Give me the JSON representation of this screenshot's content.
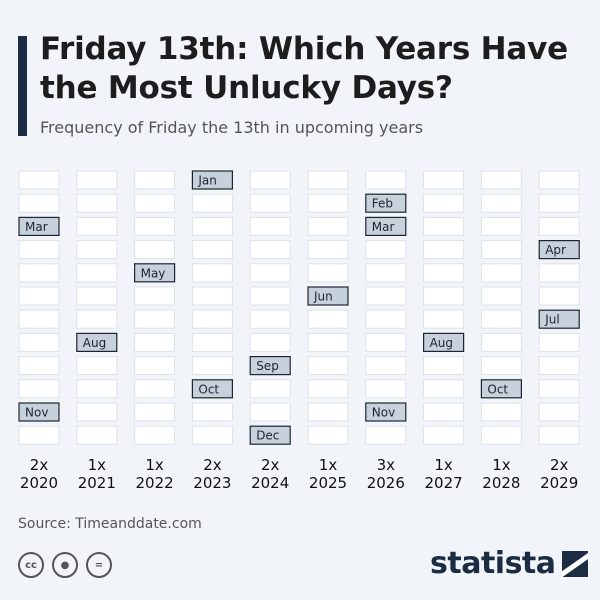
{
  "header": {
    "title": "Friday 13th: Which Years Have the Most Unlucky Days?",
    "subtitle": "Frequency of Friday the 13th in upcoming years"
  },
  "footer": {
    "source": "Source: Timeanddate.com",
    "brand": "statista",
    "icons": [
      "creative-commons-icon",
      "attribution-icon",
      "no-derivatives-icon"
    ]
  },
  "colors": {
    "background": "#f1f5fa",
    "cell": "#ffffff",
    "highlight": "#c6d1dc",
    "brand": "#1c2d43"
  },
  "chart_data": {
    "type": "table",
    "title": "Friday 13th: Which Years Have the Most Unlucky Days?",
    "subtitle": "Frequency of Friday the 13th in upcoming years",
    "rows": [
      "Jan",
      "Feb",
      "Mar",
      "Apr",
      "May",
      "Jun",
      "Jul",
      "Aug",
      "Sep",
      "Oct",
      "Nov",
      "Dec"
    ],
    "years": [
      {
        "year": "2020",
        "count_label": "2x",
        "months": [
          "Mar",
          "Nov"
        ]
      },
      {
        "year": "2021",
        "count_label": "1x",
        "months": [
          "Aug"
        ]
      },
      {
        "year": "2022",
        "count_label": "1x",
        "months": [
          "May"
        ]
      },
      {
        "year": "2023",
        "count_label": "2x",
        "months": [
          "Jan",
          "Oct"
        ]
      },
      {
        "year": "2024",
        "count_label": "2x",
        "months": [
          "Sep",
          "Dec"
        ]
      },
      {
        "year": "2025",
        "count_label": "1x",
        "months": [
          "Jun"
        ]
      },
      {
        "year": "2026",
        "count_label": "3x",
        "months": [
          "Feb",
          "Mar",
          "Nov"
        ]
      },
      {
        "year": "2027",
        "count_label": "1x",
        "months": [
          "Aug"
        ]
      },
      {
        "year": "2028",
        "count_label": "1x",
        "months": [
          "Oct"
        ]
      },
      {
        "year": "2029",
        "count_label": "2x",
        "months": [
          "Apr",
          "Jul"
        ]
      }
    ]
  }
}
